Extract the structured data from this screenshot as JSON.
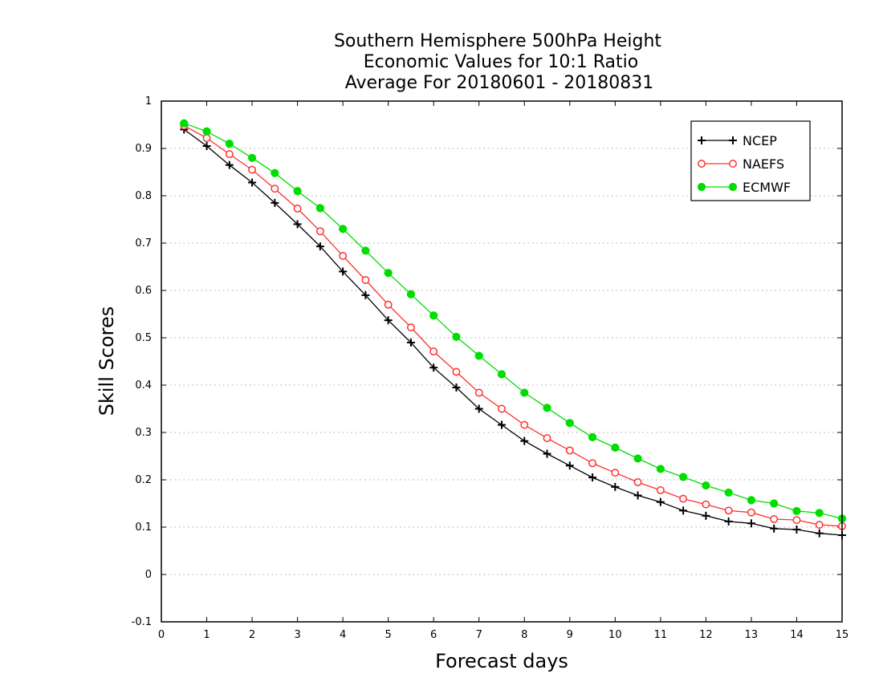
{
  "chart_data": {
    "type": "line",
    "title": [
      "Southern Hemisphere 500hPa Height",
      "Economic Values for 10:1 Ratio",
      "Average For 20180601 - 20180831"
    ],
    "xlabel": "Forecast days",
    "ylabel": "Skill Scores",
    "xlim": [
      0,
      15
    ],
    "ylim": [
      -0.1,
      1
    ],
    "x_ticks": [
      0,
      1,
      2,
      3,
      4,
      5,
      6,
      7,
      8,
      9,
      10,
      11,
      12,
      13,
      14,
      15
    ],
    "y_ticks": [
      -0.1,
      0,
      0.1,
      0.2,
      0.3,
      0.4,
      0.5,
      0.6,
      0.7,
      0.8,
      0.9,
      1
    ],
    "y_tick_labels": [
      "-0.1",
      "0",
      "0.1",
      "0.2",
      "0.3",
      "0.4",
      "0.5",
      "0.6",
      "0.7",
      "0.8",
      "0.9",
      "1"
    ],
    "grid": true,
    "legend_position": "top-right",
    "x": [
      0.5,
      1,
      1.5,
      2,
      2.5,
      3,
      3.5,
      4,
      4.5,
      5,
      5.5,
      6,
      6.5,
      7,
      7.5,
      8,
      8.5,
      9,
      9.5,
      10,
      10.5,
      11,
      11.5,
      12,
      12.5,
      13,
      13.5,
      14,
      14.5,
      15
    ],
    "series": [
      {
        "name": "NCEP",
        "color": "#000000",
        "marker": "plus",
        "values": [
          0.94,
          0.905,
          0.865,
          0.828,
          0.785,
          0.74,
          0.693,
          0.64,
          0.59,
          0.537,
          0.49,
          0.437,
          0.395,
          0.35,
          0.316,
          0.282,
          0.255,
          0.23,
          0.205,
          0.185,
          0.167,
          0.153,
          0.135,
          0.124,
          0.112,
          0.108,
          0.097,
          0.095,
          0.087,
          0.083
        ]
      },
      {
        "name": "NAEFS",
        "color": "#ff3030",
        "marker": "open-circle",
        "values": [
          0.948,
          0.922,
          0.888,
          0.855,
          0.815,
          0.773,
          0.725,
          0.673,
          0.622,
          0.57,
          0.522,
          0.471,
          0.428,
          0.384,
          0.35,
          0.316,
          0.288,
          0.262,
          0.235,
          0.215,
          0.195,
          0.178,
          0.16,
          0.148,
          0.135,
          0.131,
          0.117,
          0.115,
          0.105,
          0.102
        ]
      },
      {
        "name": "ECMWF",
        "color": "#00dd00",
        "marker": "filled-circle",
        "values": [
          0.953,
          0.936,
          0.91,
          0.88,
          0.848,
          0.81,
          0.774,
          0.73,
          0.684,
          0.637,
          0.592,
          0.547,
          0.502,
          0.462,
          0.423,
          0.384,
          0.352,
          0.32,
          0.29,
          0.268,
          0.245,
          0.223,
          0.206,
          0.188,
          0.173,
          0.157,
          0.15,
          0.134,
          0.13,
          0.118
        ]
      }
    ]
  }
}
